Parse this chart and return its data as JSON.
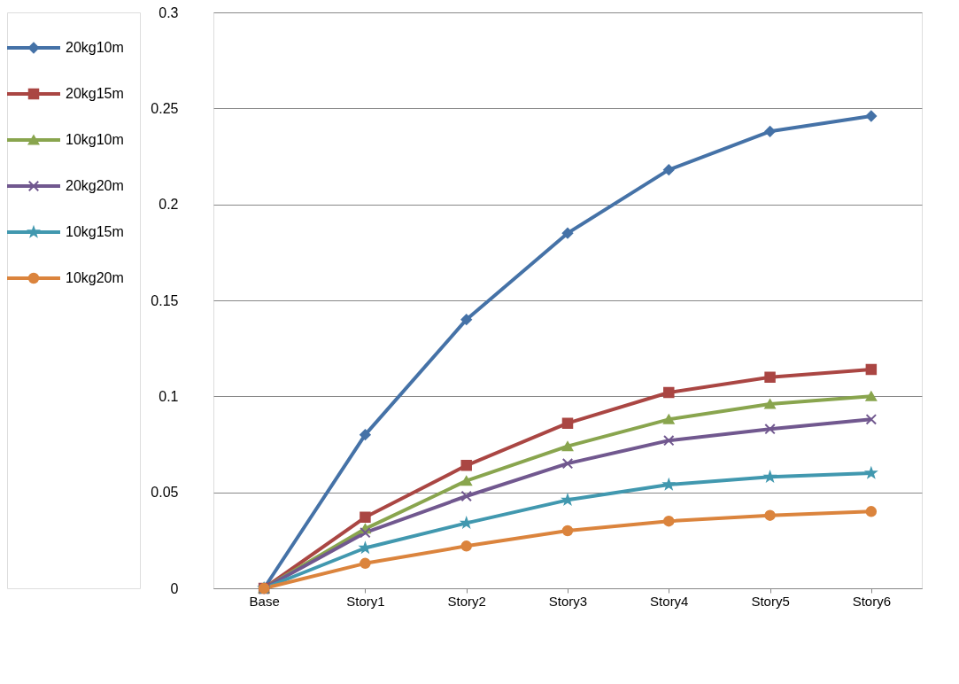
{
  "chart_data": {
    "type": "line",
    "categories": [
      "Base",
      "Story1",
      "Story2",
      "Story3",
      "Story4",
      "Story5",
      "Story6"
    ],
    "series": [
      {
        "name": "20kg10m",
        "color": "#4572a7",
        "marker": "diamond",
        "values": [
          0,
          0.08,
          0.14,
          0.185,
          0.218,
          0.238,
          0.246
        ]
      },
      {
        "name": "20kg15m",
        "color": "#aa4643",
        "marker": "square",
        "values": [
          0,
          0.037,
          0.064,
          0.086,
          0.102,
          0.11,
          0.114
        ]
      },
      {
        "name": "10kg10m",
        "color": "#89a54e",
        "marker": "triangle",
        "values": [
          0,
          0.031,
          0.056,
          0.074,
          0.088,
          0.096,
          0.1
        ]
      },
      {
        "name": "20kg20m",
        "color": "#71588f",
        "marker": "cross",
        "values": [
          0,
          0.029,
          0.048,
          0.065,
          0.077,
          0.083,
          0.088
        ]
      },
      {
        "name": "10kg15m",
        "color": "#4198af",
        "marker": "star",
        "values": [
          0,
          0.021,
          0.034,
          0.046,
          0.054,
          0.058,
          0.06
        ]
      },
      {
        "name": "10kg20m",
        "color": "#db843d",
        "marker": "circle",
        "values": [
          0,
          0.013,
          0.022,
          0.03,
          0.035,
          0.038,
          0.04
        ]
      }
    ],
    "ylim": [
      0,
      0.3
    ],
    "yticks": [
      0,
      0.05,
      0.1,
      0.15,
      0.2,
      0.25,
      0.3
    ],
    "grid": "y",
    "legend": "left",
    "line_style": "solid"
  }
}
